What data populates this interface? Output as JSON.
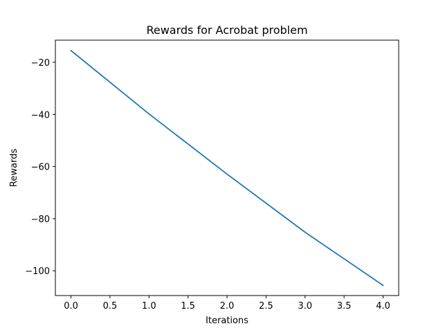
{
  "chart_data": {
    "type": "line",
    "title": "Rewards for Acrobat problem",
    "xlabel": "Iterations",
    "ylabel": "Rewards",
    "xlim": [
      -0.2,
      4.2
    ],
    "ylim": [
      -109.5,
      -11.5
    ],
    "xticks": [
      0.0,
      0.5,
      1.0,
      1.5,
      2.0,
      2.5,
      3.0,
      3.5,
      4.0
    ],
    "xtick_labels": [
      "0.0",
      "0.5",
      "1.0",
      "1.5",
      "2.0",
      "2.5",
      "3.0",
      "3.5",
      "4.0"
    ],
    "yticks": [
      -20,
      -40,
      -60,
      -80,
      -100
    ],
    "ytick_labels": [
      "−20",
      "−40",
      "−60",
      "−80",
      "−100"
    ],
    "grid": false,
    "series": [
      {
        "x": [
          0,
          1,
          2,
          3,
          4
        ],
        "values": [
          -15.5,
          -39.8,
          -62.9,
          -85.2,
          -105.6
        ],
        "color": "#1f77b4"
      }
    ]
  }
}
